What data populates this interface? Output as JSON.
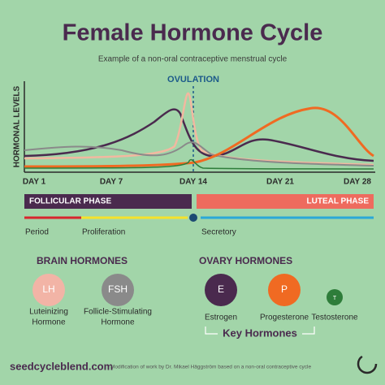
{
  "header": {
    "title": "Female Hormone Cycle",
    "subtitle": "Example of a non-oral contraceptive menstrual cycle"
  },
  "chart": {
    "ovulation": "OVULATION",
    "y_label": "HORMONAL LEVELS",
    "days": [
      "DAY 1",
      "DAY 7",
      "DAY 14",
      "DAY 21",
      "DAY 28"
    ]
  },
  "phases": {
    "follicular": "FOLLICULAR PHASE",
    "luteal": "LUTEAL PHASE"
  },
  "stages": [
    "Period",
    "Proliferation",
    "Secretory"
  ],
  "brain": {
    "heading": "BRAIN HORMONES",
    "items": [
      {
        "abbr": "LH",
        "name": [
          "Luteinizing",
          "Hormone"
        ]
      },
      {
        "abbr": "FSH",
        "name": [
          "Follicle-Stimulating",
          "Hormone"
        ]
      }
    ]
  },
  "ovary": {
    "heading": "OVARY HORMONES",
    "items": [
      {
        "abbr": "E",
        "name": [
          "Estrogen"
        ]
      },
      {
        "abbr": "P",
        "name": [
          "Progesterone"
        ]
      },
      {
        "abbr": "T",
        "name": [
          "Testosterone"
        ]
      }
    ]
  },
  "key_label": "Key Hormones",
  "footer": {
    "site": "seedcycleblend.com",
    "credit": "Modification of work by Dr. Mikael Häggström based on a non-oral contraceptive cycle"
  }
}
